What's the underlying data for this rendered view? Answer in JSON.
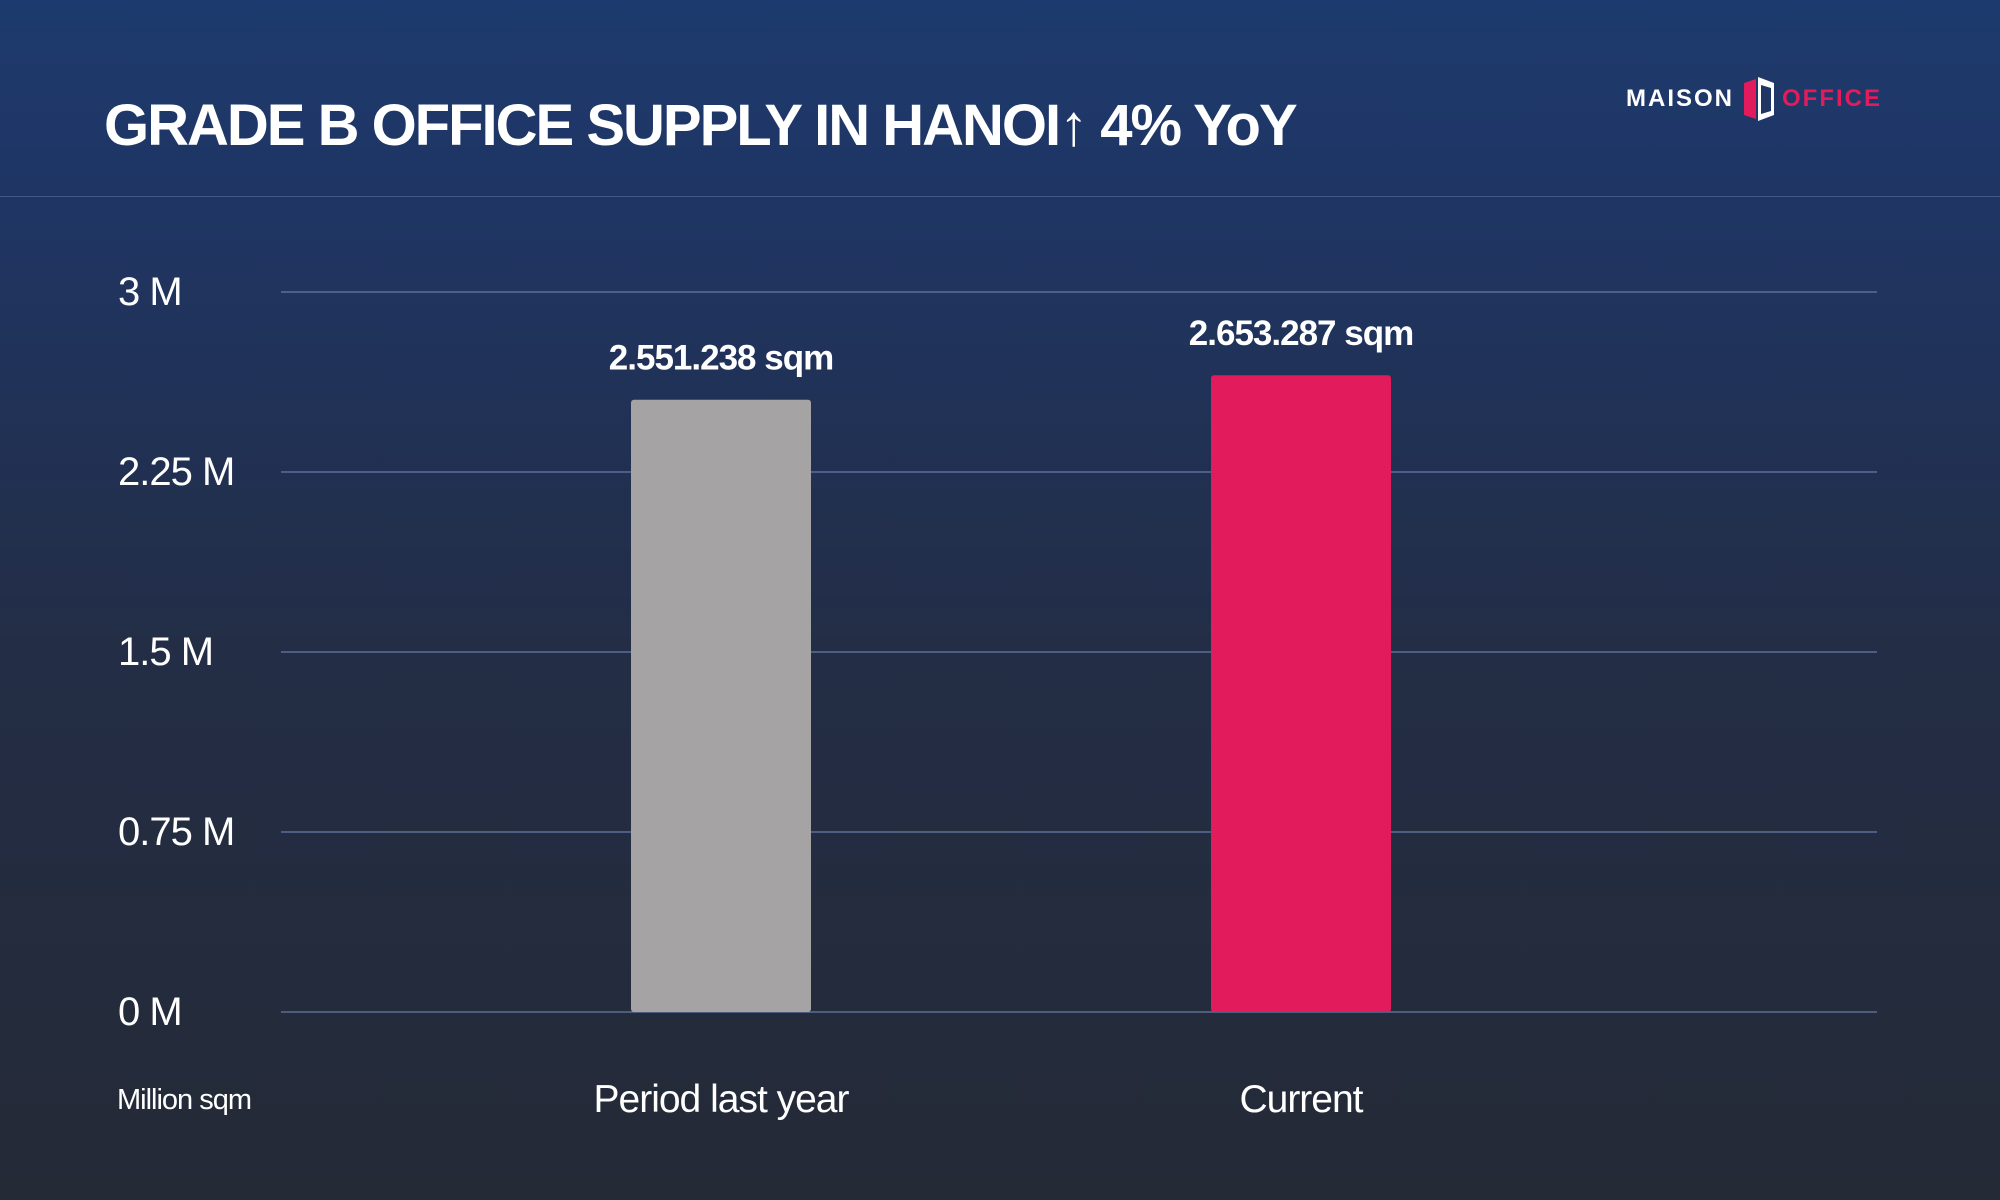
{
  "header": {
    "title": "GRADE B OFFICE SUPPLY IN HANOI↑ 4% YoY",
    "logo": {
      "left_text": "MAISON",
      "right_text": "OFFICE",
      "mark_icon": "maison-office-logo-mark"
    }
  },
  "colors": {
    "bar_previous": "#a5a3a4",
    "bar_current": "#e21b5d",
    "grid": "#5a6e97",
    "brand_accent": "#e21b5d",
    "text": "#ffffff"
  },
  "chart_data": {
    "type": "bar",
    "title": "GRADE B OFFICE SUPPLY IN HANOI↑ 4% YoY",
    "categories": [
      "Period last year",
      "Current"
    ],
    "values": [
      2551238,
      2653287
    ],
    "data_labels": [
      "2.551.238 sqm",
      "2.653.287 sqm"
    ],
    "ylabel": "Million sqm",
    "xlabel": "",
    "ylim": [
      0,
      3000000
    ],
    "y_ticks": [
      0,
      750000,
      1500000,
      2250000,
      3000000
    ],
    "y_tick_labels": [
      "0 M",
      "0.75 M",
      "1.5 M",
      "2.25 M",
      "3 M"
    ],
    "grid": true,
    "legend": false
  }
}
